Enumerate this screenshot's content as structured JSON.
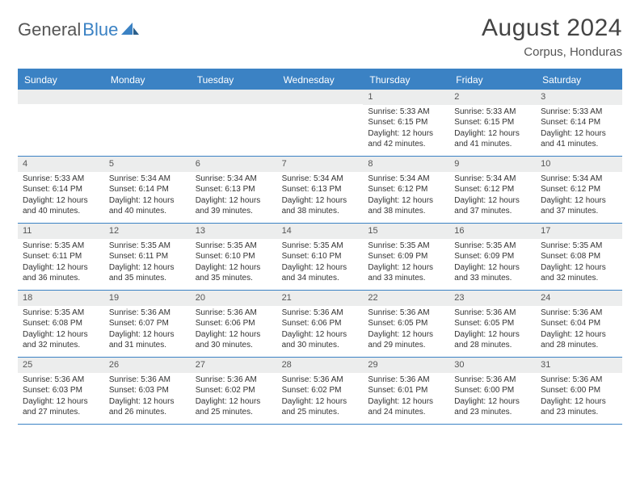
{
  "logo": {
    "part1": "General",
    "part2": "Blue"
  },
  "title": "August 2024",
  "location": "Corpus, Honduras",
  "colors": {
    "accent": "#3b82c4",
    "header_bg": "#eceded",
    "text": "#333333",
    "title_text": "#444444"
  },
  "day_names": [
    "Sunday",
    "Monday",
    "Tuesday",
    "Wednesday",
    "Thursday",
    "Friday",
    "Saturday"
  ],
  "weeks": [
    [
      {
        "n": "",
        "sr": "",
        "ss": "",
        "dl": ""
      },
      {
        "n": "",
        "sr": "",
        "ss": "",
        "dl": ""
      },
      {
        "n": "",
        "sr": "",
        "ss": "",
        "dl": ""
      },
      {
        "n": "",
        "sr": "",
        "ss": "",
        "dl": ""
      },
      {
        "n": "1",
        "sr": "Sunrise: 5:33 AM",
        "ss": "Sunset: 6:15 PM",
        "dl": "Daylight: 12 hours and 42 minutes."
      },
      {
        "n": "2",
        "sr": "Sunrise: 5:33 AM",
        "ss": "Sunset: 6:15 PM",
        "dl": "Daylight: 12 hours and 41 minutes."
      },
      {
        "n": "3",
        "sr": "Sunrise: 5:33 AM",
        "ss": "Sunset: 6:14 PM",
        "dl": "Daylight: 12 hours and 41 minutes."
      }
    ],
    [
      {
        "n": "4",
        "sr": "Sunrise: 5:33 AM",
        "ss": "Sunset: 6:14 PM",
        "dl": "Daylight: 12 hours and 40 minutes."
      },
      {
        "n": "5",
        "sr": "Sunrise: 5:34 AM",
        "ss": "Sunset: 6:14 PM",
        "dl": "Daylight: 12 hours and 40 minutes."
      },
      {
        "n": "6",
        "sr": "Sunrise: 5:34 AM",
        "ss": "Sunset: 6:13 PM",
        "dl": "Daylight: 12 hours and 39 minutes."
      },
      {
        "n": "7",
        "sr": "Sunrise: 5:34 AM",
        "ss": "Sunset: 6:13 PM",
        "dl": "Daylight: 12 hours and 38 minutes."
      },
      {
        "n": "8",
        "sr": "Sunrise: 5:34 AM",
        "ss": "Sunset: 6:12 PM",
        "dl": "Daylight: 12 hours and 38 minutes."
      },
      {
        "n": "9",
        "sr": "Sunrise: 5:34 AM",
        "ss": "Sunset: 6:12 PM",
        "dl": "Daylight: 12 hours and 37 minutes."
      },
      {
        "n": "10",
        "sr": "Sunrise: 5:34 AM",
        "ss": "Sunset: 6:12 PM",
        "dl": "Daylight: 12 hours and 37 minutes."
      }
    ],
    [
      {
        "n": "11",
        "sr": "Sunrise: 5:35 AM",
        "ss": "Sunset: 6:11 PM",
        "dl": "Daylight: 12 hours and 36 minutes."
      },
      {
        "n": "12",
        "sr": "Sunrise: 5:35 AM",
        "ss": "Sunset: 6:11 PM",
        "dl": "Daylight: 12 hours and 35 minutes."
      },
      {
        "n": "13",
        "sr": "Sunrise: 5:35 AM",
        "ss": "Sunset: 6:10 PM",
        "dl": "Daylight: 12 hours and 35 minutes."
      },
      {
        "n": "14",
        "sr": "Sunrise: 5:35 AM",
        "ss": "Sunset: 6:10 PM",
        "dl": "Daylight: 12 hours and 34 minutes."
      },
      {
        "n": "15",
        "sr": "Sunrise: 5:35 AM",
        "ss": "Sunset: 6:09 PM",
        "dl": "Daylight: 12 hours and 33 minutes."
      },
      {
        "n": "16",
        "sr": "Sunrise: 5:35 AM",
        "ss": "Sunset: 6:09 PM",
        "dl": "Daylight: 12 hours and 33 minutes."
      },
      {
        "n": "17",
        "sr": "Sunrise: 5:35 AM",
        "ss": "Sunset: 6:08 PM",
        "dl": "Daylight: 12 hours and 32 minutes."
      }
    ],
    [
      {
        "n": "18",
        "sr": "Sunrise: 5:35 AM",
        "ss": "Sunset: 6:08 PM",
        "dl": "Daylight: 12 hours and 32 minutes."
      },
      {
        "n": "19",
        "sr": "Sunrise: 5:36 AM",
        "ss": "Sunset: 6:07 PM",
        "dl": "Daylight: 12 hours and 31 minutes."
      },
      {
        "n": "20",
        "sr": "Sunrise: 5:36 AM",
        "ss": "Sunset: 6:06 PM",
        "dl": "Daylight: 12 hours and 30 minutes."
      },
      {
        "n": "21",
        "sr": "Sunrise: 5:36 AM",
        "ss": "Sunset: 6:06 PM",
        "dl": "Daylight: 12 hours and 30 minutes."
      },
      {
        "n": "22",
        "sr": "Sunrise: 5:36 AM",
        "ss": "Sunset: 6:05 PM",
        "dl": "Daylight: 12 hours and 29 minutes."
      },
      {
        "n": "23",
        "sr": "Sunrise: 5:36 AM",
        "ss": "Sunset: 6:05 PM",
        "dl": "Daylight: 12 hours and 28 minutes."
      },
      {
        "n": "24",
        "sr": "Sunrise: 5:36 AM",
        "ss": "Sunset: 6:04 PM",
        "dl": "Daylight: 12 hours and 28 minutes."
      }
    ],
    [
      {
        "n": "25",
        "sr": "Sunrise: 5:36 AM",
        "ss": "Sunset: 6:03 PM",
        "dl": "Daylight: 12 hours and 27 minutes."
      },
      {
        "n": "26",
        "sr": "Sunrise: 5:36 AM",
        "ss": "Sunset: 6:03 PM",
        "dl": "Daylight: 12 hours and 26 minutes."
      },
      {
        "n": "27",
        "sr": "Sunrise: 5:36 AM",
        "ss": "Sunset: 6:02 PM",
        "dl": "Daylight: 12 hours and 25 minutes."
      },
      {
        "n": "28",
        "sr": "Sunrise: 5:36 AM",
        "ss": "Sunset: 6:02 PM",
        "dl": "Daylight: 12 hours and 25 minutes."
      },
      {
        "n": "29",
        "sr": "Sunrise: 5:36 AM",
        "ss": "Sunset: 6:01 PM",
        "dl": "Daylight: 12 hours and 24 minutes."
      },
      {
        "n": "30",
        "sr": "Sunrise: 5:36 AM",
        "ss": "Sunset: 6:00 PM",
        "dl": "Daylight: 12 hours and 23 minutes."
      },
      {
        "n": "31",
        "sr": "Sunrise: 5:36 AM",
        "ss": "Sunset: 6:00 PM",
        "dl": "Daylight: 12 hours and 23 minutes."
      }
    ]
  ]
}
